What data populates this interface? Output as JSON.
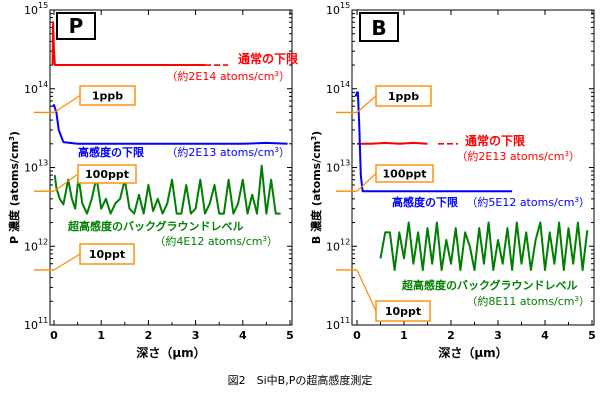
{
  "caption": "図2　Si中B,Pの超高感度測定",
  "chart_data": [
    {
      "type": "line",
      "panel_label": "P",
      "xlabel": "深さ（μm）",
      "ylabel": "P 濃度 (atoms/cm³)",
      "xlim": [
        0,
        5
      ],
      "ylim": [
        100000000000.0,
        1000000000000000.0
      ],
      "yscale": "log",
      "x_ticks": [
        "0",
        "1",
        "2",
        "3",
        "4",
        "5"
      ],
      "y_ticks": [
        {
          "base": "10",
          "exp": "11"
        },
        {
          "base": "10",
          "exp": "12"
        },
        {
          "base": "10",
          "exp": "13"
        },
        {
          "base": "10",
          "exp": "14"
        },
        {
          "base": "10",
          "exp": "15"
        }
      ],
      "series": [
        {
          "color": "#ff0000",
          "x": [
            -0.03,
            -0.02,
            0.0,
            0.02,
            0.05,
            0.2,
            1.0,
            2.0,
            3.2
          ],
          "y": [
            200000000000000.0,
            700000000000000.0,
            300000000000000.0,
            200000000000000.0,
            200000000000000.0,
            200000000000000.0,
            200000000000000.0,
            200000000000000.0,
            200000000000000.0
          ]
        },
        {
          "color": "#0000ff",
          "x": [
            -0.03,
            0.0,
            0.05,
            0.1,
            0.2,
            0.5,
            1.0,
            1.5,
            2.0,
            2.5,
            3.0,
            3.5,
            4.0,
            4.5,
            4.95
          ],
          "y": [
            60000000000000.0,
            62000000000000.0,
            50000000000000.0,
            30000000000000.0,
            21000000000000.0,
            20000000000000.0,
            20000000000000.0,
            20000000000000.0,
            20000000000000.0,
            20000000000000.0,
            20000000000000.0,
            20000000000000.0,
            20000000000000.0,
            20500000000000.0,
            20000000000000.0
          ]
        },
        {
          "color": "#008000",
          "x": [
            0.0,
            0.02,
            0.05,
            0.12,
            0.2,
            0.3,
            0.38,
            0.45,
            0.52,
            0.6,
            0.7,
            0.8,
            0.9,
            1.0,
            1.1,
            1.2,
            1.3,
            1.4,
            1.5,
            1.6,
            1.7,
            1.8,
            1.9,
            2.0,
            2.1,
            2.2,
            2.3,
            2.4,
            2.5,
            2.6,
            2.7,
            2.8,
            2.9,
            3.0,
            3.1,
            3.2,
            3.3,
            3.4,
            3.5,
            3.6,
            3.7,
            3.8,
            3.9,
            4.0,
            4.1,
            4.2,
            4.3,
            4.4,
            4.5,
            4.6,
            4.7,
            4.8
          ],
          "y": [
            7800000000000.0,
            7800000000000.0,
            5500000000000.0,
            4000000000000.0,
            3400000000000.0,
            7000000000000.0,
            4000000000000.0,
            3000000000000.0,
            7500000000000.0,
            3500000000000.0,
            2600000000000.0,
            4000000000000.0,
            7500000000000.0,
            3000000000000.0,
            4000000000000.0,
            2600000000000.0,
            3500000000000.0,
            4000000000000.0,
            7000000000000.0,
            3000000000000.0,
            2600000000000.0,
            4500000000000.0,
            2600000000000.0,
            6000000000000.0,
            2800000000000.0,
            4000000000000.0,
            2600000000000.0,
            3500000000000.0,
            7000000000000.0,
            2600000000000.0,
            2600000000000.0,
            6000000000000.0,
            2600000000000.0,
            3000000000000.0,
            7000000000000.0,
            2600000000000.0,
            3500000000000.0,
            6000000000000.0,
            2600000000000.0,
            2600000000000.0,
            7000000000000.0,
            2600000000000.0,
            3500000000000.0,
            7000000000000.0,
            2600000000000.0,
            4500000000000.0,
            2600000000000.0,
            10500000000000.0,
            2600000000000.0,
            7000000000000.0,
            2600000000000.0,
            2600000000000.0
          ]
        }
      ],
      "annotations": [
        {
          "text": "通常の下限",
          "color": "#ff0000"
        },
        {
          "text": "（約2E14 atoms/cm³）",
          "color": "#ff0000"
        },
        {
          "text": "高感度の下限",
          "color": "#0000ff"
        },
        {
          "text": "（約2E13 atoms/cm³）",
          "color": "#0000ff"
        },
        {
          "text": "超高感度のバックグラウンドレベル",
          "color": "#008000"
        },
        {
          "text": "（約4E12 atoms/cm³）",
          "color": "#008000"
        }
      ],
      "reference_labels": [
        {
          "text": "1ppb",
          "value": 50000000000000.0
        },
        {
          "text": "100ppt",
          "value": 5000000000000.0
        },
        {
          "text": "10ppt",
          "value": 500000000000.0
        }
      ]
    },
    {
      "type": "line",
      "panel_label": "B",
      "xlabel": "深さ（μm）",
      "ylabel": "B 濃度 (atoms/cm³)",
      "xlim": [
        0,
        5
      ],
      "ylim": [
        100000000000.0,
        1000000000000000.0
      ],
      "yscale": "log",
      "x_ticks": [
        "0",
        "1",
        "2",
        "3",
        "4",
        "5"
      ],
      "y_ticks": [
        {
          "base": "10",
          "exp": "11"
        },
        {
          "base": "10",
          "exp": "12"
        },
        {
          "base": "10",
          "exp": "13"
        },
        {
          "base": "10",
          "exp": "14"
        },
        {
          "base": "10",
          "exp": "15"
        }
      ],
      "series": [
        {
          "color": "#ff0000",
          "x": [
            0.0,
            0.3,
            0.6,
            0.9,
            1.2,
            1.5
          ],
          "y": [
            20000000000000.0,
            20000000000000.0,
            20500000000000.0,
            20000000000000.0,
            20500000000000.0,
            20000000000000.0
          ]
        },
        {
          "color": "#0000ff",
          "x": [
            -0.03,
            0.0,
            0.02,
            0.05,
            0.08,
            0.12,
            0.2,
            1.0,
            2.0,
            3.3
          ],
          "y": [
            80000000000000.0,
            90000000000000.0,
            90000000000000.0,
            30000000000000.0,
            8000000000000.0,
            5000000000000.0,
            5000000000000.0,
            5000000000000.0,
            5000000000000.0,
            5000000000000.0
          ]
        },
        {
          "color": "#008000",
          "x": [
            0.5,
            0.6,
            0.7,
            0.8,
            0.9,
            1.0,
            1.1,
            1.2,
            1.3,
            1.4,
            1.5,
            1.6,
            1.7,
            1.8,
            1.9,
            2.0,
            2.1,
            2.2,
            2.3,
            2.4,
            2.5,
            2.6,
            2.7,
            2.8,
            2.9,
            3.0,
            3.1,
            3.2,
            3.3,
            3.4,
            3.5,
            3.6,
            3.7,
            3.8,
            3.9,
            4.0,
            4.1,
            4.2,
            4.3,
            4.4,
            4.5,
            4.6,
            4.7,
            4.8,
            4.9
          ],
          "y": [
            700000000000.0,
            1500000000000.0,
            1500000000000.0,
            500000000000.0,
            1500000000000.0,
            700000000000.0,
            2000000000000.0,
            600000000000.0,
            1500000000000.0,
            500000000000.0,
            1700000000000.0,
            600000000000.0,
            2000000000000.0,
            500000000000.0,
            1200000000000.0,
            600000000000.0,
            1700000000000.0,
            500000000000.0,
            1500000000000.0,
            1000000000000.0,
            500000000000.0,
            1700000000000.0,
            600000000000.0,
            2000000000000.0,
            500000000000.0,
            1200000000000.0,
            600000000000.0,
            1700000000000.0,
            500000000000.0,
            2000000000000.0,
            600000000000.0,
            1500000000000.0,
            500000000000.0,
            1200000000000.0,
            2000000000000.0,
            500000000000.0,
            1500000000000.0,
            600000000000.0,
            2000000000000.0,
            500000000000.0,
            1700000000000.0,
            600000000000.0,
            2000000000000.0,
            500000000000.0,
            1600000000000.0
          ]
        }
      ],
      "annotations": [
        {
          "text": "通常の下限",
          "color": "#ff0000"
        },
        {
          "text": "（約2E13 atoms/cm³）",
          "color": "#ff0000"
        },
        {
          "text": "高感度の下限",
          "color": "#0000ff"
        },
        {
          "text": "（約5E12 atoms/cm³）",
          "color": "#0000ff"
        },
        {
          "text": "超高感度のバックグラウンドレベル",
          "color": "#008000"
        },
        {
          "text": "（約8E11 atoms/cm³）",
          "color": "#008000"
        }
      ],
      "reference_labels": [
        {
          "text": "1ppb",
          "value": 50000000000000.0
        },
        {
          "text": "100ppt",
          "value": 5000000000000.0
        },
        {
          "text": "10ppt",
          "value": 500000000000.0
        }
      ]
    }
  ]
}
